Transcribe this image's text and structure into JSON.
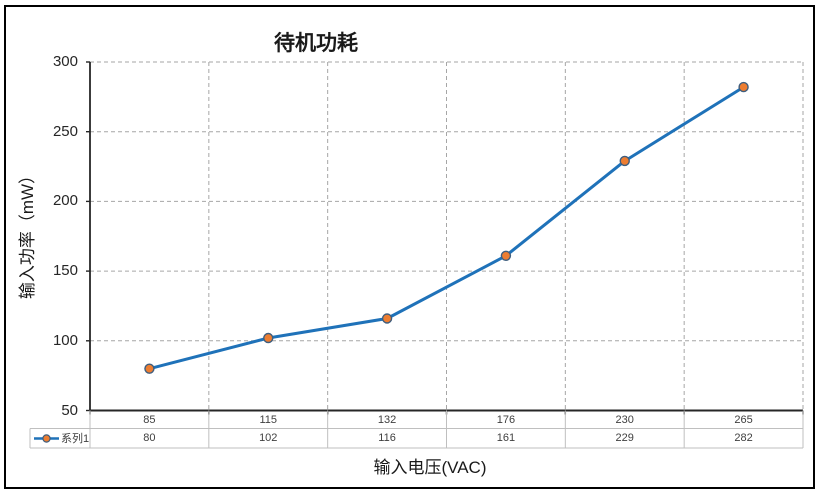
{
  "chart_data": {
    "type": "line",
    "title": "待机功耗",
    "xlabel": "输入电压(VAC)",
    "ylabel": "输入功率（mW）",
    "categories": [
      85,
      115,
      132,
      176,
      230,
      265
    ],
    "series": [
      {
        "name": "系列1",
        "values": [
          80,
          102,
          116,
          161,
          229,
          282
        ]
      }
    ],
    "ylim": [
      50,
      300
    ],
    "yticks": [
      300,
      250,
      200,
      150,
      100,
      50
    ],
    "grid": true,
    "legend_position": "data-table-left",
    "data_table_shown": true,
    "colors": {
      "line": "#1F72B9",
      "marker_fill": "#ED7D31",
      "marker_stroke": "#3F5E7E",
      "gridline": "#A6A6A6",
      "axis": "#262626",
      "table_border": "#BFBFBF",
      "tick_text": "#262626",
      "table_text": "#404040",
      "title_text": "#1A1A1A",
      "frame_border": "#000000"
    }
  }
}
